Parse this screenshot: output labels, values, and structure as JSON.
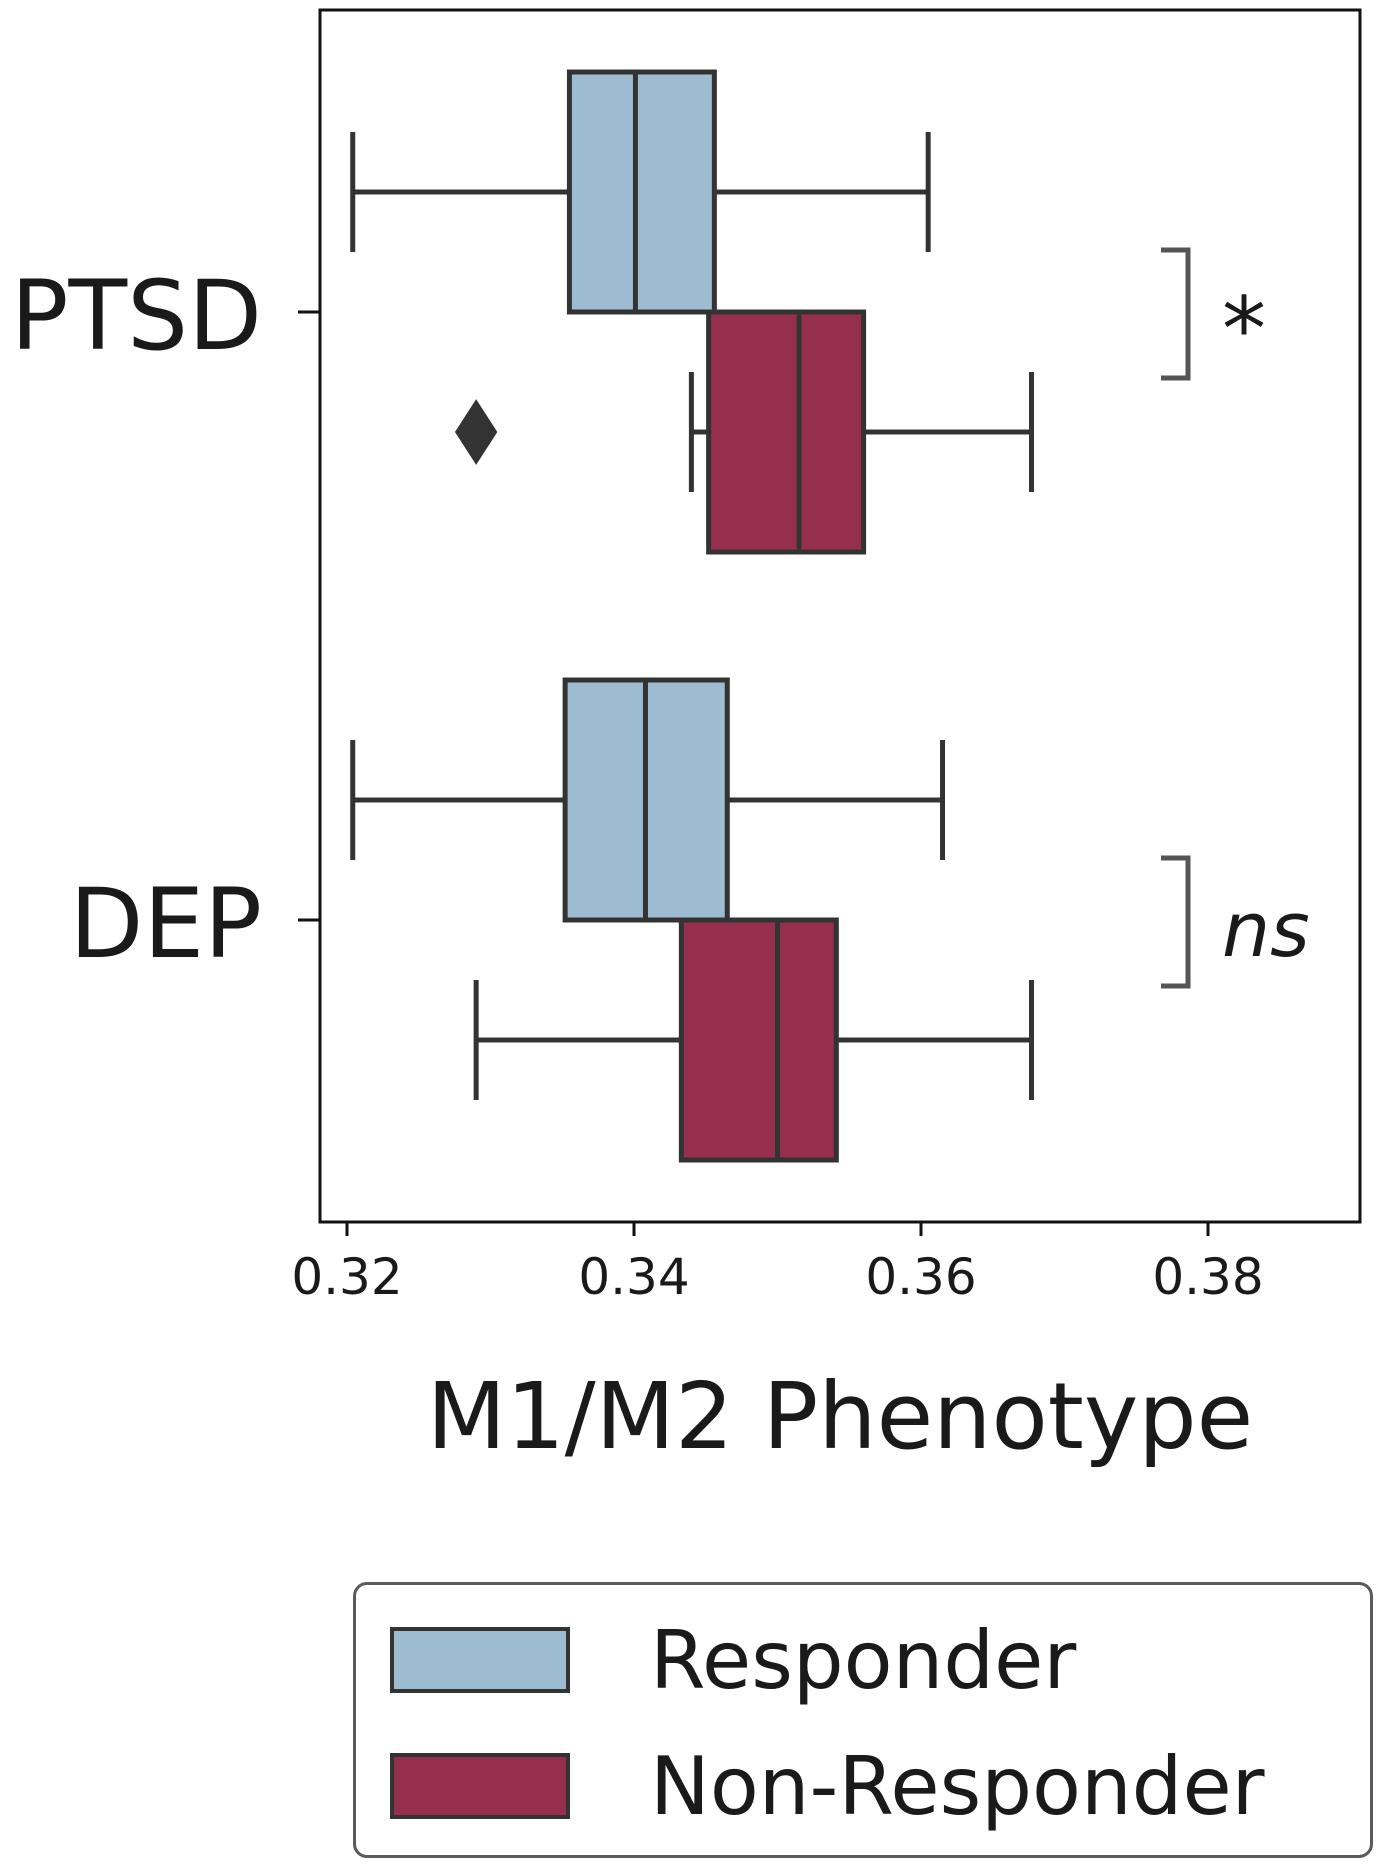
{
  "chart_data": {
    "type": "boxplot",
    "orientation": "horizontal",
    "xlabel": "M1/M2 Phenotype",
    "xlim": [
      0.319,
      0.3895
    ],
    "xticks": [
      "0.32",
      "0.34",
      "0.36",
      "0.38"
    ],
    "categories": [
      "PTSD",
      "DEP"
    ],
    "colors": {
      "Responder": "#9dbcd2",
      "Non-Responder": "#952f4d",
      "outline": "#333333",
      "bracket": "#555555"
    },
    "series": [
      {
        "name": "Responder",
        "boxes": [
          {
            "category": "PTSD",
            "whisker_low": 0.3204,
            "q1": 0.3355,
            "median": 0.3401,
            "q3": 0.3456,
            "whisker_high": 0.3605,
            "outliers": []
          },
          {
            "category": "DEP",
            "whisker_low": 0.3204,
            "q1": 0.3352,
            "median": 0.3408,
            "q3": 0.3465,
            "whisker_high": 0.3615,
            "outliers": []
          }
        ]
      },
      {
        "name": "Non-Responder",
        "boxes": [
          {
            "category": "PTSD",
            "whisker_low": 0.344,
            "q1": 0.3452,
            "median": 0.3515,
            "q3": 0.356,
            "whisker_high": 0.3677,
            "outliers": [
              0.329
            ]
          },
          {
            "category": "DEP",
            "whisker_low": 0.329,
            "q1": 0.3433,
            "median": 0.35,
            "q3": 0.3541,
            "whisker_high": 0.3677,
            "outliers": []
          }
        ]
      }
    ],
    "annotations": [
      {
        "category": "PTSD",
        "text": "*",
        "italic": false
      },
      {
        "category": "DEP",
        "text": "ns",
        "italic": true
      }
    ],
    "legend": {
      "position": "bottom-right",
      "entries": [
        "Responder",
        "Non-Responder"
      ]
    },
    "grid": false
  }
}
